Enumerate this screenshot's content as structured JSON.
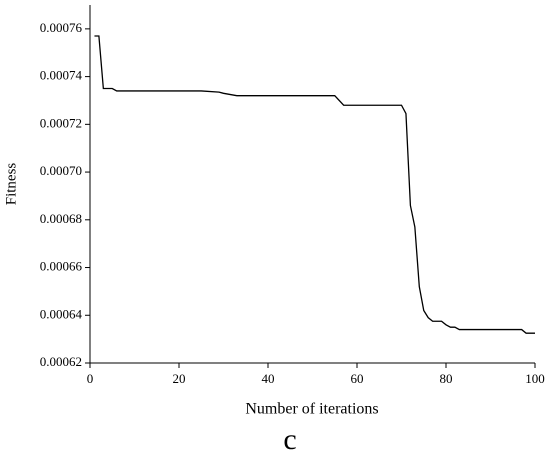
{
  "chart_data": {
    "type": "line",
    "x_label": "Number of iterations",
    "y_label": "Fitness",
    "annotation": "c",
    "x": [
      1,
      2,
      3,
      5,
      6,
      25,
      29,
      30,
      33,
      55,
      57,
      70,
      71,
      72,
      73,
      74,
      75,
      76,
      77,
      79,
      80,
      81,
      82,
      83,
      97,
      98,
      100
    ],
    "values": [
      0.000757,
      0.000757,
      0.000735,
      0.000735,
      0.000734,
      0.000734,
      0.0007335,
      0.000733,
      0.000732,
      0.000732,
      0.000728,
      0.000728,
      0.0007245,
      0.000686,
      0.000677,
      0.000652,
      0.000642,
      0.000639,
      0.0006375,
      0.0006375,
      0.000636,
      0.000635,
      0.000635,
      0.000634,
      0.000634,
      0.0006325,
      0.0006325
    ],
    "color": "#000000",
    "xlim": [
      0,
      100
    ],
    "xticks": [
      0,
      20,
      40,
      60,
      80,
      100
    ],
    "ylim": [
      0.00062,
      0.00077
    ],
    "yticks": [
      0.00062,
      0.00064,
      0.00066,
      0.00068,
      {
        "value": 0.0007,
        "label": "0.00070"
      },
      0.00072,
      0.00074,
      0.00076
    ]
  }
}
